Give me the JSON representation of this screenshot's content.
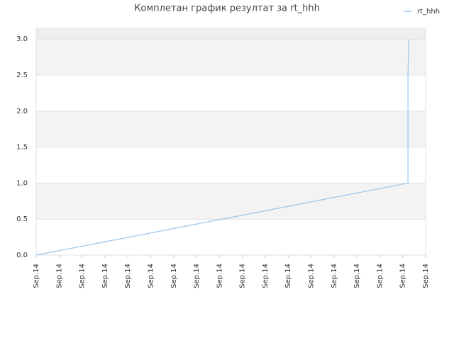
{
  "chart_data": {
    "type": "line",
    "title": "Комплетан график резултат за rt_hhh",
    "x": [
      0,
      16.23,
      16.23,
      16.26
    ],
    "series": [
      {
        "name": "rt_hhh",
        "color": "#99c4ee",
        "values": [
          0,
          1.0,
          2.5,
          3.0
        ]
      }
    ],
    "xlim": [
      0,
      17
    ],
    "xticks": [
      {
        "value": 0,
        "label": "Sep.14"
      },
      {
        "value": 1,
        "label": "Sep.14"
      },
      {
        "value": 2,
        "label": "Sep.14"
      },
      {
        "value": 3,
        "label": "Sep.14"
      },
      {
        "value": 4,
        "label": "Sep.14"
      },
      {
        "value": 5,
        "label": "Sep.14"
      },
      {
        "value": 6,
        "label": "Sep.14"
      },
      {
        "value": 7,
        "label": "Sep.14"
      },
      {
        "value": 8,
        "label": "Sep.14"
      },
      {
        "value": 9,
        "label": "Sep.14"
      },
      {
        "value": 10,
        "label": "Sep.14"
      },
      {
        "value": 11,
        "label": "Sep.14"
      },
      {
        "value": 12,
        "label": "Sep.14"
      },
      {
        "value": 13,
        "label": "Sep.14"
      },
      {
        "value": 14,
        "label": "Sep.14"
      },
      {
        "value": 15,
        "label": "Sep.14"
      },
      {
        "value": 16,
        "label": "Sep.14"
      },
      {
        "value": 17,
        "label": "Sep.14"
      }
    ],
    "ylim": [
      0,
      3.15
    ],
    "yticks": [
      {
        "value": 0,
        "label": "0.0"
      },
      {
        "value": 0.5,
        "label": "0.5"
      },
      {
        "value": 1,
        "label": "1.0"
      },
      {
        "value": 1.5,
        "label": "1.5"
      },
      {
        "value": 2,
        "label": "2.0"
      },
      {
        "value": 2.5,
        "label": "2.5"
      },
      {
        "value": 3,
        "label": "3.0"
      }
    ],
    "grid": true,
    "legend": "top-right"
  }
}
